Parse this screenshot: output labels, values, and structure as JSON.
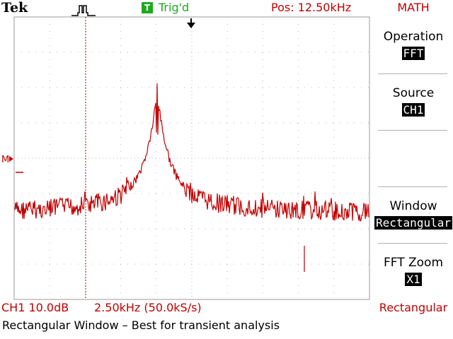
{
  "header": {
    "brand": "Tek",
    "trigger_badge": "T",
    "trigger_status": "Trig'd",
    "position": "Pos: 12.50kHz"
  },
  "menu": {
    "title": "MATH",
    "items": [
      {
        "label": "Operation",
        "value": "FFT"
      },
      {
        "label": "Source",
        "value": "CH1"
      },
      {
        "label": "Window",
        "value": "Rectangular"
      },
      {
        "label": "FFT Zoom",
        "value": "X1"
      }
    ]
  },
  "readout": {
    "channel_scale": "CH1 10.0dB",
    "horizontal": "2.50kHz (50.0kS/s)",
    "window": "Rectangular",
    "message": "Rectangular Window – Best for transient analysis"
  },
  "marker": {
    "label": "M"
  },
  "colors": {
    "trace": "#c00000",
    "trigger": "#1ea81e",
    "grid": "#b5b5b5"
  }
}
